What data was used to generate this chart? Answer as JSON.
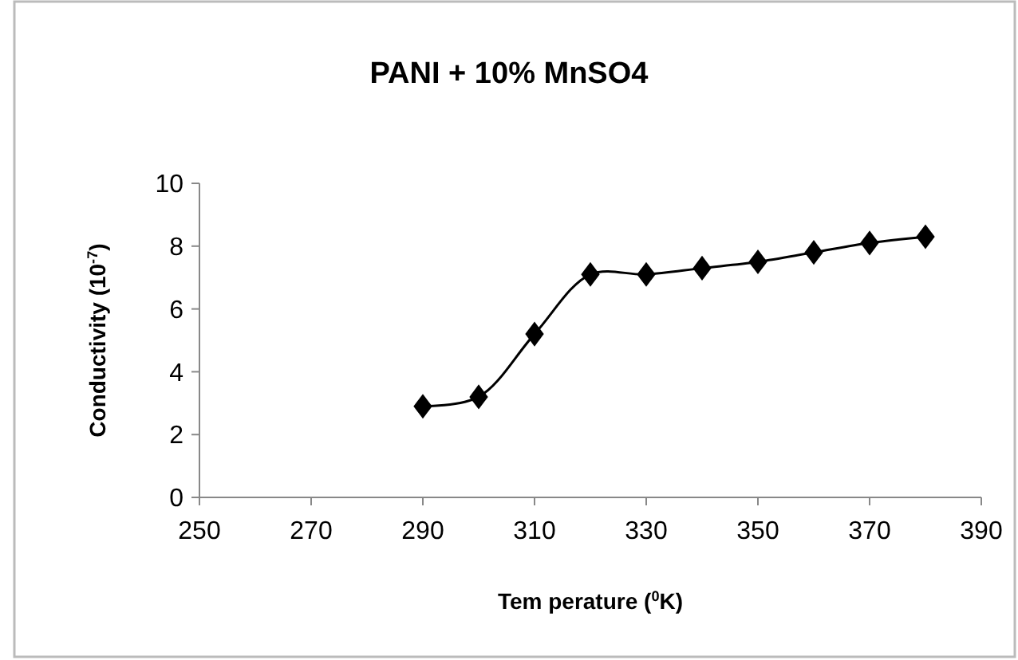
{
  "chart_data": {
    "type": "line",
    "title": "PANI + 10% MnSO4",
    "xlabel": "Tem perature ($^{0}$K)",
    "ylabel": "Conductivity (10$^{-7}$)",
    "x": [
      290,
      300,
      310,
      320,
      330,
      340,
      350,
      360,
      370,
      380
    ],
    "series": [
      {
        "color": "#000000",
        "values": [
          2.9,
          3.2,
          5.2,
          7.1,
          7.1,
          7.3,
          7.5,
          7.8,
          8.1,
          8.3
        ]
      }
    ],
    "xlim": [
      250,
      390
    ],
    "xticks": [
      250,
      270,
      290,
      310,
      330,
      350,
      370,
      390
    ],
    "ylim": [
      0,
      10
    ],
    "yticks": [
      0,
      2,
      4,
      6,
      8,
      10
    ],
    "grid": false,
    "marker": "diamond",
    "line_style": "solid"
  }
}
